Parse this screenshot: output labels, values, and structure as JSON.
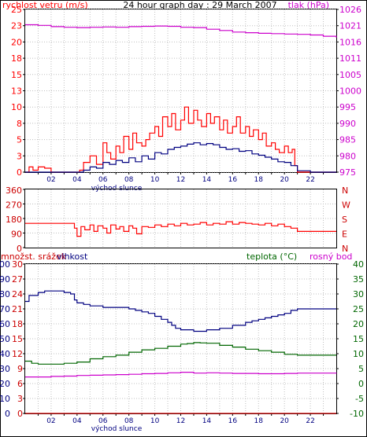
{
  "colors": {
    "border": "#000000",
    "wind_speed": "#ff0000",
    "wind_avg": "#000080",
    "pressure": "#cc00cc",
    "direction": "#ff0000",
    "temperature": "#006600",
    "humidity": "#000080",
    "dewpoint": "#cc00cc",
    "precip": "#cc0000",
    "grid": "#c0c0c0"
  },
  "chart_data": [
    {
      "type": "line",
      "title": "24 hour graph day : 29 March 2007",
      "ylabel_left": "rychlost vetru (m/s)",
      "ylabel_right": "tlak (hPa)",
      "x_tick_labels": [
        "02",
        "04",
        "06",
        "08",
        "10",
        "12",
        "14",
        "16",
        "18",
        "20",
        "22"
      ],
      "x_annotation": "východ slunce",
      "y_left_ticks": [
        "25",
        "23",
        "20",
        "18",
        "15",
        "13",
        "10",
        "8",
        "5",
        "3",
        "0"
      ],
      "y_right_ticks": [
        "1026",
        "1021",
        "1016",
        "1011",
        "1005",
        "1000",
        "995",
        "990",
        "985",
        "980",
        "975"
      ],
      "ylim_left": [
        0,
        25
      ],
      "ylim_right": [
        975,
        1026
      ],
      "xlim": [
        0,
        24
      ],
      "series": [
        {
          "key": "wind_gust",
          "x": [
            0,
            0.3,
            0.6,
            1,
            1.5,
            2,
            3,
            4,
            4.2,
            4.5,
            5,
            5.5,
            6,
            6.3,
            6.6,
            7,
            7.3,
            7.6,
            8,
            8.3,
            8.6,
            9,
            9.3,
            9.6,
            10,
            10.3,
            10.6,
            11,
            11.3,
            11.6,
            12,
            12.3,
            12.6,
            13,
            13.3,
            13.6,
            14,
            14.3,
            14.6,
            15,
            15.3,
            15.6,
            16,
            16.3,
            16.6,
            17,
            17.3,
            17.6,
            18,
            18.3,
            18.6,
            19,
            19.3,
            19.6,
            20,
            20.3,
            20.6,
            20.8,
            21,
            21.5,
            22,
            24
          ],
          "values": [
            0,
            0.8,
            0.3,
            0.8,
            0.6,
            0,
            0,
            0,
            0.3,
            1.5,
            2.5,
            1.2,
            4.5,
            3,
            2,
            4,
            3,
            5.5,
            3.5,
            6,
            4.5,
            4,
            5,
            6,
            7,
            5.5,
            8.5,
            7,
            9,
            6.5,
            8,
            10,
            7.5,
            9.5,
            8,
            7,
            9,
            7.5,
            8.5,
            6.5,
            8,
            6,
            7,
            8.5,
            6,
            7,
            5.5,
            6.5,
            5,
            6,
            4,
            4.5,
            3.5,
            3,
            4,
            3,
            3.5,
            1,
            0,
            0,
            0,
            0
          ]
        },
        {
          "key": "wind_avg",
          "x": [
            0,
            2,
            4,
            4.5,
            5,
            5.5,
            6,
            6.5,
            7,
            7.5,
            8,
            8.5,
            9,
            9.5,
            10,
            10.5,
            11,
            11.5,
            12,
            12.5,
            13,
            13.5,
            14,
            14.5,
            15,
            15.5,
            16,
            16.5,
            17,
            17.5,
            18,
            18.5,
            19,
            19.5,
            20,
            20.5,
            21,
            22,
            24
          ],
          "values": [
            0,
            0,
            0,
            0.3,
            0.8,
            0.6,
            1.5,
            1.2,
            1.8,
            1.5,
            2.2,
            1.6,
            2.5,
            2,
            3,
            2.8,
            3.5,
            3.8,
            4,
            4.3,
            4.5,
            4.2,
            4.4,
            4.2,
            3.8,
            3.5,
            3.6,
            3.2,
            3.3,
            2.8,
            2.6,
            2.3,
            2,
            1.6,
            1.5,
            1,
            0.2,
            0,
            0
          ]
        },
        {
          "key": "pressure",
          "x": [
            0,
            1,
            2,
            3,
            4,
            5,
            6,
            7,
            8,
            9,
            10,
            11,
            12,
            13,
            14,
            15,
            16,
            17,
            18,
            19,
            20,
            21,
            22,
            23,
            24
          ],
          "values": [
            1021.2,
            1021,
            1020.6,
            1020.4,
            1020.3,
            1020.4,
            1020.5,
            1020.4,
            1020.6,
            1020.7,
            1020.8,
            1020.7,
            1020.4,
            1020.3,
            1019.8,
            1019.4,
            1018.9,
            1018.7,
            1018.5,
            1018.4,
            1018.3,
            1018.2,
            1018,
            1017.6,
            1017.2
          ]
        }
      ]
    },
    {
      "type": "line",
      "y_left_ticks": [
        "360",
        "270",
        "180",
        "90",
        "0"
      ],
      "y_right_ticks": [
        "N",
        "W",
        "S",
        "E",
        "N"
      ],
      "ylim": [
        0,
        360
      ],
      "xlim": [
        0,
        24
      ],
      "series": [
        {
          "key": "wind_direction",
          "x": [
            0,
            1,
            2,
            3,
            3.5,
            3.8,
            4,
            4.3,
            4.6,
            5,
            5.3,
            5.6,
            6,
            6.3,
            6.6,
            7,
            7.3,
            7.6,
            8,
            8.3,
            8.6,
            9,
            9.5,
            10,
            10.5,
            11,
            11.5,
            12,
            12.5,
            13,
            13.5,
            14,
            14.5,
            15,
            15.5,
            16,
            16.5,
            17,
            17.5,
            18,
            18.5,
            19,
            19.5,
            20,
            20.5,
            21,
            22,
            24
          ],
          "values": [
            150,
            150,
            150,
            150,
            150,
            120,
            70,
            130,
            110,
            140,
            100,
            135,
            120,
            90,
            140,
            115,
            130,
            100,
            135,
            120,
            85,
            130,
            125,
            140,
            130,
            145,
            135,
            150,
            140,
            145,
            155,
            140,
            150,
            145,
            160,
            145,
            155,
            150,
            145,
            140,
            150,
            135,
            145,
            130,
            120,
            100,
            100,
            100
          ]
        }
      ]
    },
    {
      "type": "line",
      "ylabel_left": "množst. srážek",
      "ylabel_left2": "vlhkost",
      "ylabel_right_a": "teplota (°C)",
      "ylabel_right_b": "rosný bod",
      "x_tick_labels": [
        "02",
        "04",
        "06",
        "08",
        "10",
        "12",
        "14",
        "16",
        "18",
        "20",
        "22"
      ],
      "x_annotation": "východ slunce",
      "y_precip_ticks": [
        "30",
        "27",
        "24",
        "21",
        "18",
        "15",
        "12",
        "9",
        "6",
        "3",
        "0"
      ],
      "y_humidity_ticks": [
        "100",
        "90",
        "80",
        "70",
        "60",
        "50",
        "40",
        "30",
        "20",
        "10",
        "0"
      ],
      "y_temp_ticks": [
        "40",
        "35",
        "30",
        "25",
        "20",
        "15",
        "10",
        "5",
        "0",
        "-5",
        "-10"
      ],
      "ylim_humidity": [
        0,
        100
      ],
      "ylim_temp": [
        -10,
        40
      ],
      "xlim": [
        0,
        24
      ],
      "series": [
        {
          "key": "humidity",
          "x": [
            0,
            0.3,
            1,
            1.5,
            2,
            2.5,
            3,
            3.5,
            3.8,
            4,
            4.5,
            5,
            6,
            7,
            8,
            8.5,
            9,
            9.5,
            10,
            10.5,
            11,
            11.3,
            11.6,
            12,
            12.5,
            13,
            13.5,
            14,
            14.5,
            15,
            16,
            17,
            17.5,
            18,
            18.5,
            19,
            19.5,
            20,
            20.5,
            21,
            22,
            24
          ],
          "values": [
            75,
            79,
            81,
            82,
            82,
            82,
            81,
            80,
            76,
            74,
            73,
            72,
            71,
            71,
            70,
            69,
            68,
            67,
            65,
            63,
            61,
            59,
            57,
            56,
            56,
            55,
            55,
            56,
            56,
            57,
            59,
            61,
            62,
            63,
            64,
            65,
            66,
            67,
            69,
            70,
            70,
            70
          ]
        },
        {
          "key": "temperature",
          "x": [
            0,
            0.5,
            1,
            2,
            3,
            4,
            5,
            6,
            7,
            8,
            9,
            10,
            11,
            12,
            12.5,
            13,
            13.5,
            14,
            15,
            16,
            17,
            18,
            19,
            20,
            21,
            22,
            23,
            24
          ],
          "values": [
            7.5,
            6.8,
            6.5,
            6.5,
            6.8,
            7.2,
            8.3,
            9,
            9.5,
            10.5,
            11.3,
            11.8,
            12.5,
            13.2,
            13.4,
            13.7,
            13.6,
            13.5,
            12.8,
            12.2,
            11.5,
            11,
            10.5,
            9.8,
            9.5,
            9.5,
            9.5,
            9.5
          ]
        },
        {
          "key": "dewpoint",
          "x": [
            0,
            1,
            2,
            3,
            4,
            5,
            6,
            7,
            8,
            9,
            10,
            11,
            12,
            13,
            14,
            15,
            16,
            17,
            18,
            19,
            20,
            21,
            22,
            23,
            24
          ],
          "values": [
            2.2,
            2.2,
            2.4,
            2.5,
            2.7,
            2.8,
            2.9,
            3.0,
            3.1,
            3.3,
            3.4,
            3.6,
            3.8,
            3.5,
            3.6,
            3.5,
            3.4,
            3.4,
            3.3,
            3.3,
            3.4,
            3.5,
            3.5,
            3.5,
            3.6
          ]
        },
        {
          "key": "precipitation",
          "x": [
            0,
            24
          ],
          "values": [
            0,
            0
          ]
        }
      ]
    }
  ]
}
